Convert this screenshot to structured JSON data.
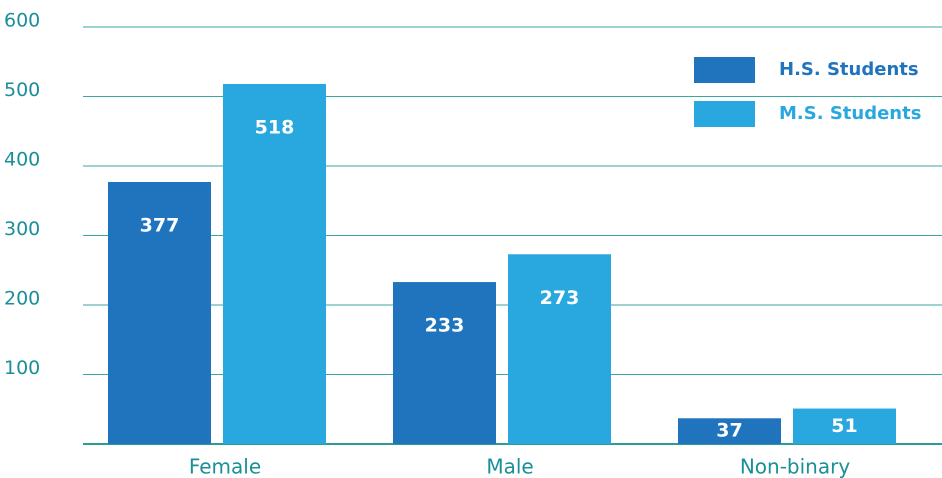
{
  "chart_data": {
    "type": "bar",
    "categories": [
      "Female",
      "Male",
      "Non-binary"
    ],
    "series": [
      {
        "name": "H.S. Students",
        "color": "#1f74bd",
        "values": [
          377,
          233,
          37
        ]
      },
      {
        "name": "M.S. Students",
        "color": "#29a8e0",
        "values": [
          518,
          273,
          51
        ]
      }
    ],
    "ylim": [
      0,
      600
    ],
    "yticks": [
      100,
      200,
      300,
      400,
      500,
      600
    ],
    "grid": true,
    "legend": "upper right"
  }
}
